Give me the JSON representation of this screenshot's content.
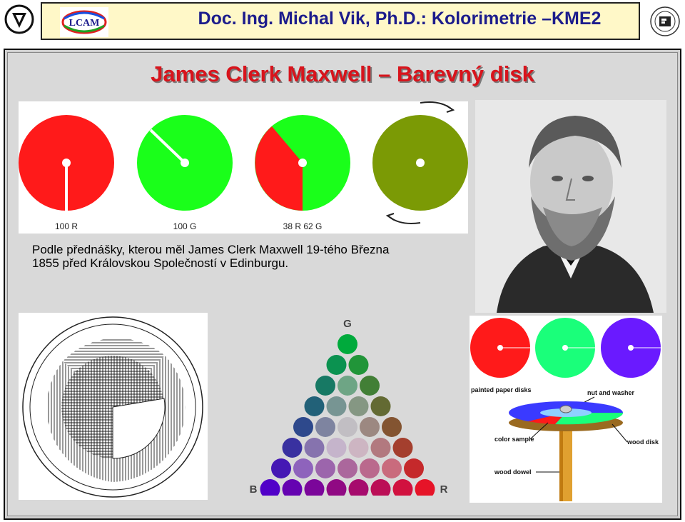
{
  "header": {
    "title": "Doc. Ing. Michal Vik, Ph.D.: Kolorimetrie –KME2",
    "lcam_logo_text": "LCAM"
  },
  "slide": {
    "title": "James Clerk Maxwell – Barevný disk",
    "caption_line1": "Podle přednášky, kterou měl James Clerk Maxwell 19-tého Března",
    "caption_line2": "1855 před Královskou Společností v Edinburgu."
  },
  "disks": {
    "labels": [
      "100 R",
      "100 G",
      "38 R  62 G"
    ],
    "colors": {
      "red": "#ff1a1a",
      "green": "#1aff1a",
      "mix": "#7b9a05"
    }
  },
  "triangle": {
    "top_label": "G",
    "left_label": "B",
    "right_label": "R"
  },
  "apparatus": {
    "labels": {
      "painted": "painted paper disks",
      "nut": "nut and washer",
      "sample": "color sample",
      "wood_disk": "wood disk",
      "dowel": "wood dowel"
    },
    "colors": {
      "red": "#ff1a1a",
      "green": "#1aff7a",
      "violet": "#6a1aff"
    }
  }
}
